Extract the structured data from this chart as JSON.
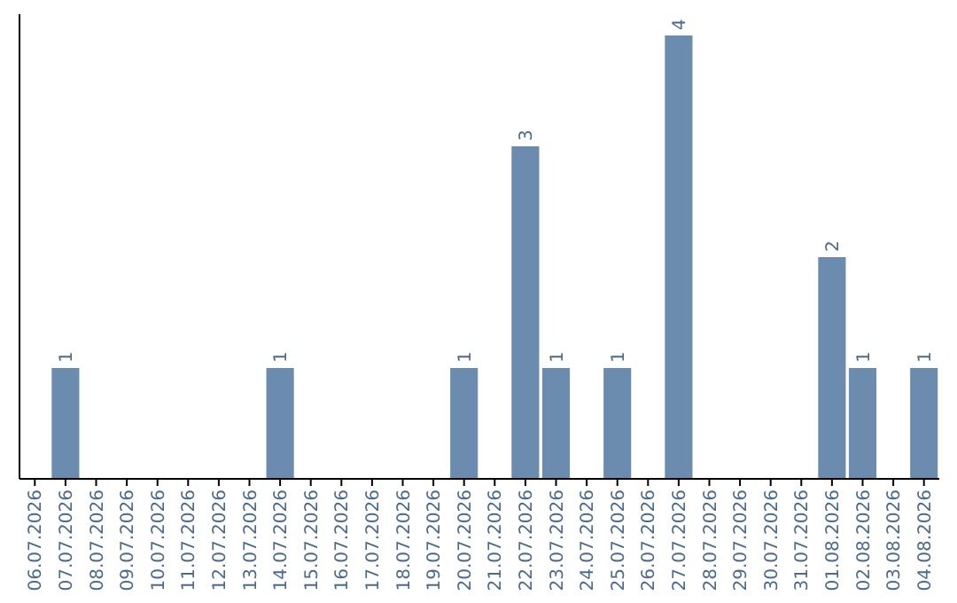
{
  "chart_data": {
    "type": "bar",
    "categories": [
      "06.07.2026",
      "07.07.2026",
      "08.07.2026",
      "09.07.2026",
      "10.07.2026",
      "11.07.2026",
      "12.07.2026",
      "13.07.2026",
      "14.07.2026",
      "15.07.2026",
      "16.07.2026",
      "17.07.2026",
      "18.07.2026",
      "19.07.2026",
      "20.07.2026",
      "21.07.2026",
      "22.07.2026",
      "23.07.2026",
      "24.07.2026",
      "25.07.2026",
      "26.07.2026",
      "27.07.2026",
      "28.07.2026",
      "29.07.2026",
      "30.07.2026",
      "31.07.2026",
      "01.08.2026",
      "02.08.2026",
      "03.08.2026",
      "04.08.2026"
    ],
    "values": [
      0,
      1,
      0,
      0,
      0,
      0,
      0,
      0,
      1,
      0,
      0,
      0,
      0,
      0,
      1,
      0,
      3,
      1,
      0,
      1,
      0,
      4,
      0,
      0,
      0,
      0,
      2,
      1,
      0,
      1
    ],
    "value_labels": [
      null,
      "1",
      null,
      null,
      null,
      null,
      null,
      null,
      "1",
      null,
      null,
      null,
      null,
      null,
      "1",
      null,
      "3",
      "1",
      null,
      "1",
      null,
      "4",
      null,
      null,
      null,
      null,
      "2",
      "1",
      null,
      "1"
    ],
    "color": "#6b8cae",
    "ylim": [
      0,
      4
    ],
    "tick_labels": "x"
  }
}
